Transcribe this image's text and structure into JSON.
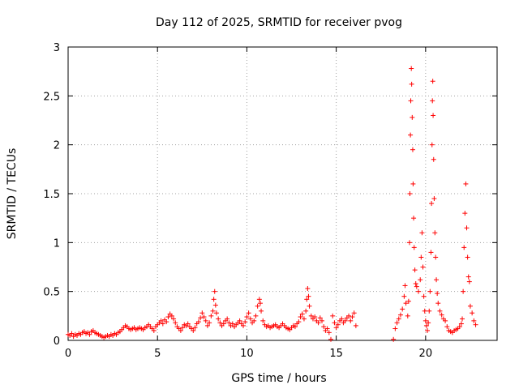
{
  "chart_data": {
    "type": "scatter",
    "title": "Day 112 of 2025, SRMTID for receiver pvog",
    "xlabel": "GPS time / hours",
    "ylabel": "SRMTID / TECUs",
    "xlim": [
      0,
      24
    ],
    "ylim": [
      0,
      3
    ],
    "xticks": [
      0,
      5,
      10,
      15,
      20
    ],
    "xtick_labels": [
      "0",
      "5",
      "10",
      "15",
      "20"
    ],
    "yticks": [
      0,
      0.5,
      1,
      1.5,
      2,
      2.5,
      3
    ],
    "ytick_labels": [
      "0",
      "0.5",
      "1",
      "1.5",
      "2",
      "2.5",
      "3"
    ],
    "grid": true,
    "marker": "+",
    "marker_color": "#ff0000",
    "series": [
      {
        "name": "SRMTID",
        "points": [
          [
            0.0,
            0.06
          ],
          [
            0.1,
            0.05
          ],
          [
            0.2,
            0.07
          ],
          [
            0.3,
            0.04
          ],
          [
            0.4,
            0.06
          ],
          [
            0.5,
            0.05
          ],
          [
            0.6,
            0.07
          ],
          [
            0.7,
            0.06
          ],
          [
            0.8,
            0.08
          ],
          [
            0.9,
            0.09
          ],
          [
            1.0,
            0.07
          ],
          [
            1.1,
            0.08
          ],
          [
            1.2,
            0.06
          ],
          [
            1.3,
            0.09
          ],
          [
            1.4,
            0.1
          ],
          [
            1.5,
            0.08
          ],
          [
            1.6,
            0.07
          ],
          [
            1.7,
            0.06
          ],
          [
            1.8,
            0.05
          ],
          [
            1.9,
            0.04
          ],
          [
            2.0,
            0.03
          ],
          [
            2.1,
            0.04
          ],
          [
            2.2,
            0.05
          ],
          [
            2.3,
            0.04
          ],
          [
            2.4,
            0.06
          ],
          [
            2.5,
            0.05
          ],
          [
            2.6,
            0.07
          ],
          [
            2.7,
            0.06
          ],
          [
            2.8,
            0.08
          ],
          [
            2.9,
            0.09
          ],
          [
            3.0,
            0.11
          ],
          [
            3.1,
            0.13
          ],
          [
            3.2,
            0.15
          ],
          [
            3.3,
            0.14
          ],
          [
            3.4,
            0.12
          ],
          [
            3.5,
            0.11
          ],
          [
            3.6,
            0.12
          ],
          [
            3.7,
            0.13
          ],
          [
            3.8,
            0.11
          ],
          [
            3.9,
            0.12
          ],
          [
            4.0,
            0.13
          ],
          [
            4.1,
            0.12
          ],
          [
            4.2,
            0.11
          ],
          [
            4.3,
            0.13
          ],
          [
            4.4,
            0.14
          ],
          [
            4.5,
            0.16
          ],
          [
            4.6,
            0.14
          ],
          [
            4.7,
            0.12
          ],
          [
            4.8,
            0.1
          ],
          [
            4.9,
            0.14
          ],
          [
            5.0,
            0.16
          ],
          [
            5.1,
            0.18
          ],
          [
            5.2,
            0.2
          ],
          [
            5.3,
            0.17
          ],
          [
            5.4,
            0.21
          ],
          [
            5.5,
            0.19
          ],
          [
            5.6,
            0.24
          ],
          [
            5.7,
            0.27
          ],
          [
            5.8,
            0.25
          ],
          [
            5.9,
            0.22
          ],
          [
            6.0,
            0.18
          ],
          [
            6.1,
            0.14
          ],
          [
            6.2,
            0.12
          ],
          [
            6.3,
            0.1
          ],
          [
            6.4,
            0.13
          ],
          [
            6.5,
            0.16
          ],
          [
            6.6,
            0.15
          ],
          [
            6.7,
            0.17
          ],
          [
            6.8,
            0.14
          ],
          [
            6.9,
            0.12
          ],
          [
            7.0,
            0.1
          ],
          [
            7.1,
            0.13
          ],
          [
            7.2,
            0.17
          ],
          [
            7.3,
            0.19
          ],
          [
            7.4,
            0.23
          ],
          [
            7.5,
            0.28
          ],
          [
            7.6,
            0.24
          ],
          [
            7.7,
            0.2
          ],
          [
            7.8,
            0.15
          ],
          [
            7.9,
            0.18
          ],
          [
            8.0,
            0.25
          ],
          [
            8.1,
            0.3
          ],
          [
            8.15,
            0.42
          ],
          [
            8.2,
            0.5
          ],
          [
            8.25,
            0.36
          ],
          [
            8.3,
            0.28
          ],
          [
            8.4,
            0.22
          ],
          [
            8.5,
            0.18
          ],
          [
            8.6,
            0.15
          ],
          [
            8.7,
            0.17
          ],
          [
            8.8,
            0.2
          ],
          [
            8.9,
            0.22
          ],
          [
            9.0,
            0.18
          ],
          [
            9.1,
            0.15
          ],
          [
            9.2,
            0.17
          ],
          [
            9.3,
            0.14
          ],
          [
            9.4,
            0.16
          ],
          [
            9.5,
            0.18
          ],
          [
            9.6,
            0.2
          ],
          [
            9.7,
            0.17
          ],
          [
            9.8,
            0.15
          ],
          [
            9.9,
            0.19
          ],
          [
            10.0,
            0.24
          ],
          [
            10.1,
            0.28
          ],
          [
            10.2,
            0.22
          ],
          [
            10.3,
            0.18
          ],
          [
            10.4,
            0.2
          ],
          [
            10.5,
            0.25
          ],
          [
            10.6,
            0.35
          ],
          [
            10.7,
            0.42
          ],
          [
            10.75,
            0.38
          ],
          [
            10.8,
            0.3
          ],
          [
            10.9,
            0.2
          ],
          [
            11.0,
            0.16
          ],
          [
            11.1,
            0.14
          ],
          [
            11.2,
            0.15
          ],
          [
            11.3,
            0.13
          ],
          [
            11.4,
            0.14
          ],
          [
            11.5,
            0.15
          ],
          [
            11.6,
            0.16
          ],
          [
            11.7,
            0.14
          ],
          [
            11.8,
            0.13
          ],
          [
            11.9,
            0.15
          ],
          [
            12.0,
            0.17
          ],
          [
            12.1,
            0.15
          ],
          [
            12.2,
            0.13
          ],
          [
            12.3,
            0.12
          ],
          [
            12.4,
            0.11
          ],
          [
            12.5,
            0.13
          ],
          [
            12.6,
            0.15
          ],
          [
            12.7,
            0.14
          ],
          [
            12.8,
            0.17
          ],
          [
            12.9,
            0.19
          ],
          [
            13.0,
            0.24
          ],
          [
            13.1,
            0.27
          ],
          [
            13.2,
            0.22
          ],
          [
            13.3,
            0.3
          ],
          [
            13.35,
            0.42
          ],
          [
            13.4,
            0.53
          ],
          [
            13.45,
            0.45
          ],
          [
            13.5,
            0.35
          ],
          [
            13.6,
            0.25
          ],
          [
            13.7,
            0.22
          ],
          [
            13.8,
            0.24
          ],
          [
            13.9,
            0.2
          ],
          [
            14.0,
            0.18
          ],
          [
            14.1,
            0.23
          ],
          [
            14.2,
            0.2
          ],
          [
            14.3,
            0.14
          ],
          [
            14.4,
            0.1
          ],
          [
            14.5,
            0.12
          ],
          [
            14.6,
            0.08
          ],
          [
            14.7,
            0.01
          ],
          [
            14.8,
            0.25
          ],
          [
            14.9,
            0.18
          ],
          [
            15.0,
            0.13
          ],
          [
            15.1,
            0.16
          ],
          [
            15.2,
            0.2
          ],
          [
            15.3,
            0.22
          ],
          [
            15.4,
            0.18
          ],
          [
            15.5,
            0.2
          ],
          [
            15.6,
            0.23
          ],
          [
            15.7,
            0.25
          ],
          [
            15.8,
            0.2
          ],
          [
            15.9,
            0.24
          ],
          [
            16.0,
            0.28
          ],
          [
            16.1,
            0.15
          ],
          [
            18.2,
            0.01
          ],
          [
            18.3,
            0.12
          ],
          [
            18.4,
            0.18
          ],
          [
            18.5,
            0.22
          ],
          [
            18.6,
            0.26
          ],
          [
            18.7,
            0.32
          ],
          [
            18.8,
            0.45
          ],
          [
            18.85,
            0.56
          ],
          [
            18.9,
            0.38
          ],
          [
            19.0,
            0.25
          ],
          [
            19.05,
            0.4
          ],
          [
            19.1,
            1.0
          ],
          [
            19.12,
            1.5
          ],
          [
            19.15,
            2.1
          ],
          [
            19.17,
            2.45
          ],
          [
            19.2,
            2.78
          ],
          [
            19.22,
            2.62
          ],
          [
            19.25,
            2.28
          ],
          [
            19.28,
            1.95
          ],
          [
            19.3,
            1.6
          ],
          [
            19.33,
            1.25
          ],
          [
            19.36,
            0.95
          ],
          [
            19.4,
            0.72
          ],
          [
            19.45,
            0.58
          ],
          [
            19.5,
            0.55
          ],
          [
            19.6,
            0.5
          ],
          [
            19.7,
            0.62
          ],
          [
            19.75,
            0.85
          ],
          [
            19.8,
            1.1
          ],
          [
            19.85,
            0.75
          ],
          [
            19.9,
            0.45
          ],
          [
            19.95,
            0.3
          ],
          [
            20.0,
            0.2
          ],
          [
            20.05,
            0.15
          ],
          [
            20.1,
            0.1
          ],
          [
            20.15,
            0.18
          ],
          [
            20.2,
            0.3
          ],
          [
            20.25,
            0.5
          ],
          [
            20.3,
            0.9
          ],
          [
            20.33,
            1.4
          ],
          [
            20.36,
            2.0
          ],
          [
            20.38,
            2.45
          ],
          [
            20.4,
            2.65
          ],
          [
            20.42,
            2.3
          ],
          [
            20.45,
            1.85
          ],
          [
            20.48,
            1.45
          ],
          [
            20.52,
            1.1
          ],
          [
            20.56,
            0.85
          ],
          [
            20.6,
            0.62
          ],
          [
            20.65,
            0.48
          ],
          [
            20.7,
            0.38
          ],
          [
            20.8,
            0.3
          ],
          [
            20.9,
            0.26
          ],
          [
            21.0,
            0.22
          ],
          [
            21.1,
            0.2
          ],
          [
            21.2,
            0.14
          ],
          [
            21.3,
            0.1
          ],
          [
            21.4,
            0.09
          ],
          [
            21.5,
            0.08
          ],
          [
            21.6,
            0.1
          ],
          [
            21.7,
            0.11
          ],
          [
            21.8,
            0.12
          ],
          [
            21.9,
            0.14
          ],
          [
            22.0,
            0.17
          ],
          [
            22.05,
            0.22
          ],
          [
            22.1,
            0.5
          ],
          [
            22.15,
            0.95
          ],
          [
            22.2,
            1.3
          ],
          [
            22.25,
            1.6
          ],
          [
            22.3,
            1.15
          ],
          [
            22.35,
            0.85
          ],
          [
            22.4,
            0.65
          ],
          [
            22.45,
            0.6
          ],
          [
            22.5,
            0.35
          ],
          [
            22.6,
            0.28
          ],
          [
            22.7,
            0.2
          ],
          [
            22.8,
            0.16
          ]
        ]
      }
    ]
  }
}
